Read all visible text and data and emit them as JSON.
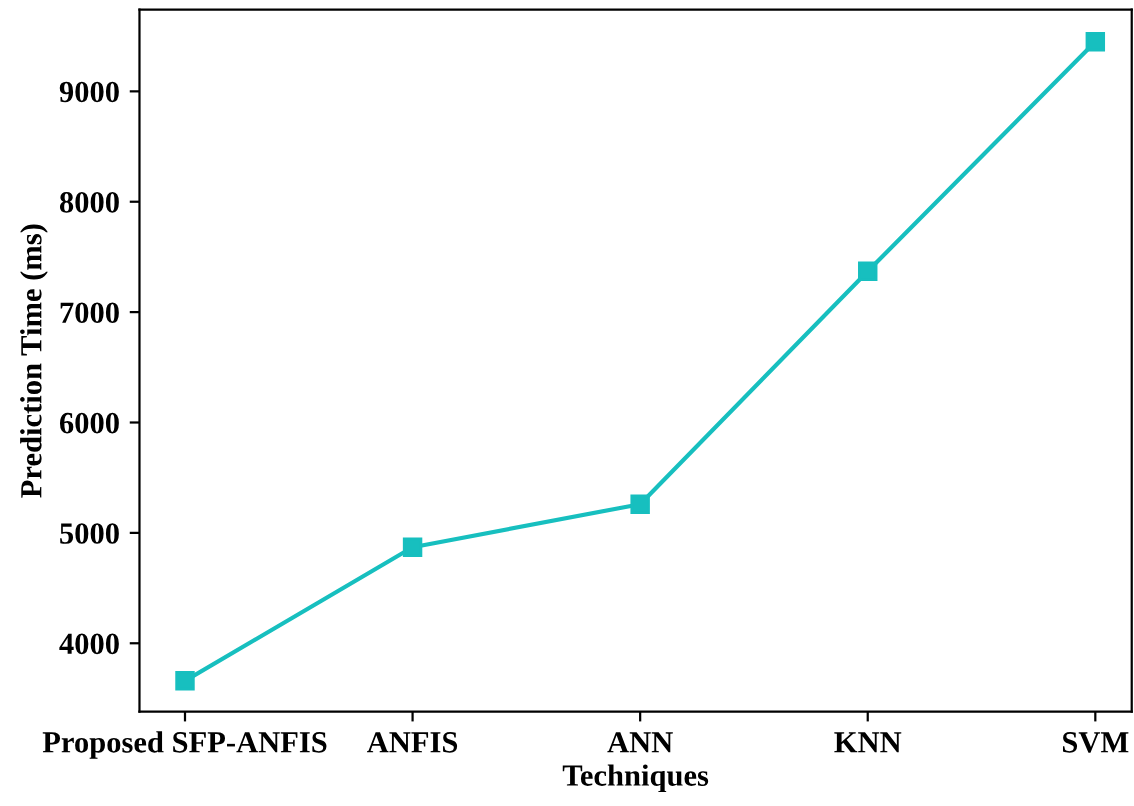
{
  "chart_data": {
    "type": "line",
    "xlabel": "Techniques",
    "ylabel": "Prediction Time (ms)",
    "categories": [
      "Proposed SFP-ANFIS",
      "ANFIS",
      "ANN",
      "KNN",
      "SVM"
    ],
    "series": [
      {
        "color": "#17bfbf",
        "values": [
          3660,
          4870,
          5260,
          7370,
          9450
        ]
      }
    ],
    "ylim": [
      3380,
      9740
    ],
    "yticks": [
      4000,
      5000,
      6000,
      7000,
      8000,
      9000
    ],
    "marker": "square",
    "line_style": "solid",
    "grid": false,
    "legend": false
  }
}
